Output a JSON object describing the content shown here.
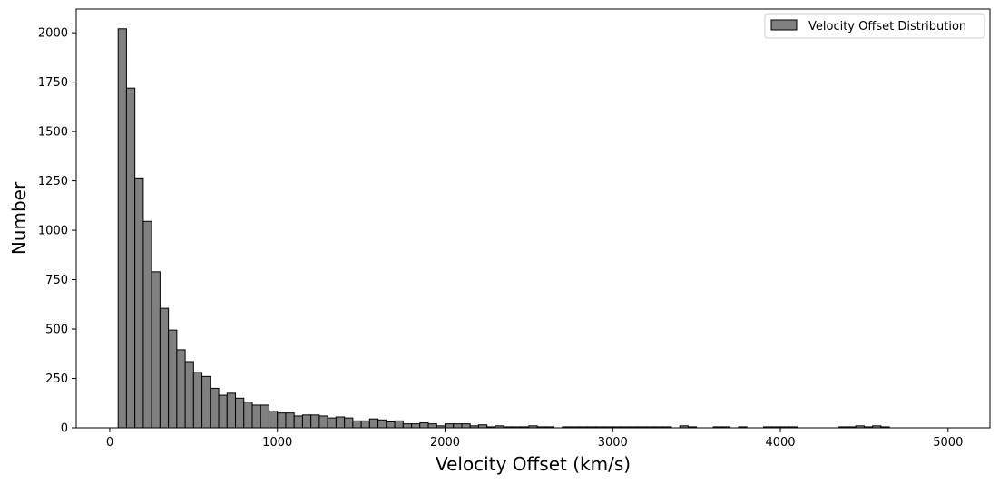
{
  "chart_data": {
    "type": "bar",
    "subtype": "histogram",
    "xlabel": "Velocity Offset (km/s)",
    "ylabel": "Number",
    "xlim": [
      -200,
      5250
    ],
    "ylim": [
      0,
      2120
    ],
    "xticks": [
      0,
      1000,
      2000,
      3000,
      4000,
      5000
    ],
    "yticks": [
      0,
      250,
      500,
      750,
      1000,
      1250,
      1500,
      1750,
      2000
    ],
    "grid": false,
    "legend": {
      "placement": "top-right",
      "entries": [
        "Velocity Offset Distribution"
      ]
    },
    "bar_color": "#808080",
    "edge_color": "#000000",
    "series": [
      {
        "name": "Velocity Offset Distribution",
        "bins": [
          [
            50,
            100,
            2020
          ],
          [
            100,
            150,
            1720
          ],
          [
            150,
            200,
            1265
          ],
          [
            200,
            250,
            1045
          ],
          [
            250,
            300,
            790
          ],
          [
            300,
            350,
            605
          ],
          [
            350,
            400,
            495
          ],
          [
            400,
            450,
            395
          ],
          [
            450,
            500,
            335
          ],
          [
            500,
            550,
            280
          ],
          [
            550,
            600,
            260
          ],
          [
            600,
            650,
            200
          ],
          [
            650,
            700,
            165
          ],
          [
            700,
            750,
            175
          ],
          [
            750,
            800,
            150
          ],
          [
            800,
            850,
            130
          ],
          [
            850,
            900,
            115
          ],
          [
            900,
            950,
            115
          ],
          [
            950,
            1000,
            85
          ],
          [
            1000,
            1050,
            75
          ],
          [
            1050,
            1100,
            75
          ],
          [
            1100,
            1150,
            60
          ],
          [
            1150,
            1200,
            65
          ],
          [
            1200,
            1250,
            65
          ],
          [
            1250,
            1300,
            60
          ],
          [
            1300,
            1350,
            50
          ],
          [
            1350,
            1400,
            55
          ],
          [
            1400,
            1450,
            50
          ],
          [
            1450,
            1500,
            35
          ],
          [
            1500,
            1550,
            35
          ],
          [
            1550,
            1600,
            45
          ],
          [
            1600,
            1650,
            40
          ],
          [
            1650,
            1700,
            30
          ],
          [
            1700,
            1750,
            35
          ],
          [
            1750,
            1800,
            20
          ],
          [
            1800,
            1850,
            20
          ],
          [
            1850,
            1900,
            25
          ],
          [
            1900,
            1950,
            20
          ],
          [
            1950,
            2000,
            10
          ],
          [
            2000,
            2050,
            20
          ],
          [
            2050,
            2100,
            20
          ],
          [
            2100,
            2150,
            20
          ],
          [
            2150,
            2200,
            10
          ],
          [
            2200,
            2250,
            15
          ],
          [
            2250,
            2300,
            5
          ],
          [
            2300,
            2350,
            10
          ],
          [
            2350,
            2400,
            5
          ],
          [
            2400,
            2450,
            5
          ],
          [
            2450,
            2500,
            5
          ],
          [
            2500,
            2550,
            10
          ],
          [
            2550,
            2600,
            5
          ],
          [
            2600,
            2650,
            5
          ],
          [
            2650,
            2700,
            0
          ],
          [
            2700,
            2750,
            5
          ],
          [
            2750,
            2800,
            5
          ],
          [
            2800,
            2850,
            5
          ],
          [
            2850,
            2900,
            5
          ],
          [
            2900,
            2950,
            5
          ],
          [
            2950,
            3000,
            5
          ],
          [
            3000,
            3050,
            5
          ],
          [
            3050,
            3100,
            5
          ],
          [
            3100,
            3150,
            5
          ],
          [
            3150,
            3200,
            5
          ],
          [
            3200,
            3250,
            5
          ],
          [
            3250,
            3300,
            5
          ],
          [
            3300,
            3350,
            5
          ],
          [
            3350,
            3400,
            0
          ],
          [
            3400,
            3450,
            10
          ],
          [
            3450,
            3500,
            5
          ],
          [
            3500,
            3550,
            0
          ],
          [
            3550,
            3600,
            0
          ],
          [
            3600,
            3650,
            5
          ],
          [
            3650,
            3700,
            5
          ],
          [
            3700,
            3750,
            0
          ],
          [
            3750,
            3800,
            5
          ],
          [
            3800,
            3850,
            0
          ],
          [
            3850,
            3900,
            0
          ],
          [
            3900,
            3950,
            5
          ],
          [
            3950,
            4000,
            5
          ],
          [
            4000,
            4050,
            5
          ],
          [
            4050,
            4100,
            5
          ],
          [
            4100,
            4150,
            0
          ],
          [
            4150,
            4200,
            0
          ],
          [
            4200,
            4250,
            0
          ],
          [
            4250,
            4300,
            0
          ],
          [
            4300,
            4350,
            0
          ],
          [
            4350,
            4400,
            5
          ],
          [
            4400,
            4450,
            5
          ],
          [
            4450,
            4500,
            10
          ],
          [
            4500,
            4550,
            5
          ],
          [
            4550,
            4600,
            10
          ],
          [
            4600,
            4650,
            5
          ]
        ]
      }
    ]
  }
}
